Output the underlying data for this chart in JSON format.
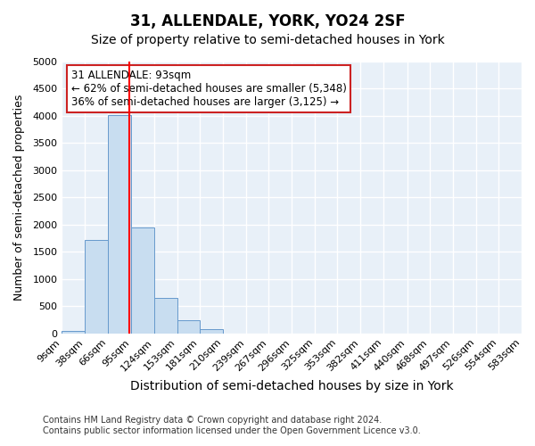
{
  "title": "31, ALLENDALE, YORK, YO24 2SF",
  "subtitle": "Size of property relative to semi-detached houses in York",
  "xlabel": "Distribution of semi-detached houses by size in York",
  "ylabel": "Number of semi-detached properties",
  "bin_labels": [
    "9sqm",
    "38sqm",
    "66sqm",
    "95sqm",
    "124sqm",
    "153sqm",
    "181sqm",
    "210sqm",
    "239sqm",
    "267sqm",
    "296sqm",
    "325sqm",
    "353sqm",
    "382sqm",
    "411sqm",
    "440sqm",
    "468sqm",
    "497sqm",
    "526sqm",
    "554sqm",
    "583sqm"
  ],
  "bar_heights": [
    50,
    1720,
    4010,
    1950,
    650,
    240,
    75,
    0,
    0,
    0,
    0,
    0,
    0,
    0,
    0,
    0,
    0,
    0,
    0,
    0
  ],
  "bar_color": "#c8ddf0",
  "bar_edge_color": "#6699cc",
  "property_line_x": 93,
  "ylim": [
    0,
    5000
  ],
  "yticks": [
    0,
    500,
    1000,
    1500,
    2000,
    2500,
    3000,
    3500,
    4000,
    4500,
    5000
  ],
  "annotation_title": "31 ALLENDALE: 93sqm",
  "annotation_line1": "← 62% of semi-detached houses are smaller (5,348)",
  "annotation_line2": "36% of semi-detached houses are larger (3,125) →",
  "footer_line1": "Contains HM Land Registry data © Crown copyright and database right 2024.",
  "footer_line2": "Contains public sector information licensed under the Open Government Licence v3.0.",
  "bin_edges": [
    9,
    38,
    66,
    95,
    124,
    153,
    181,
    210,
    239,
    267,
    296,
    325,
    353,
    382,
    411,
    440,
    468,
    497,
    526,
    554,
    583
  ],
  "fig_bg": "#ffffff",
  "ax_bg": "#e8f0f8",
  "grid_color": "#ffffff",
  "title_fontsize": 12,
  "subtitle_fontsize": 10,
  "xlabel_fontsize": 10,
  "ylabel_fontsize": 9,
  "tick_fontsize": 8,
  "annotation_fontsize": 8.5,
  "footer_fontsize": 7
}
